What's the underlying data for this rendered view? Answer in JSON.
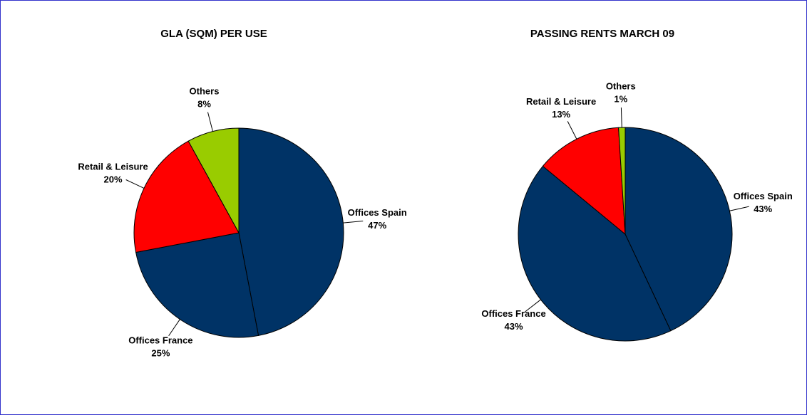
{
  "chart_data": [
    {
      "type": "pie",
      "title": "GLA (SQM) PER USE",
      "categories": [
        "Offices Spain",
        "Offices France",
        "Retail & Leisure",
        "Others"
      ],
      "values": [
        47,
        25,
        20,
        8
      ],
      "value_labels": [
        "47%",
        "25%",
        "20%",
        "8%"
      ],
      "colors": [
        "#003366",
        "#003366",
        "#ff0000",
        "#99cc00"
      ]
    },
    {
      "type": "pie",
      "title": "PASSING RENTS MARCH 09",
      "categories": [
        "Offices Spain",
        "Offices France",
        "Retail & Leisure",
        "Others"
      ],
      "values": [
        43,
        43,
        13,
        1
      ],
      "value_labels": [
        "43%",
        "43%",
        "13%",
        "1%"
      ],
      "colors": [
        "#003366",
        "#003366",
        "#ff0000",
        "#99cc00"
      ]
    }
  ]
}
